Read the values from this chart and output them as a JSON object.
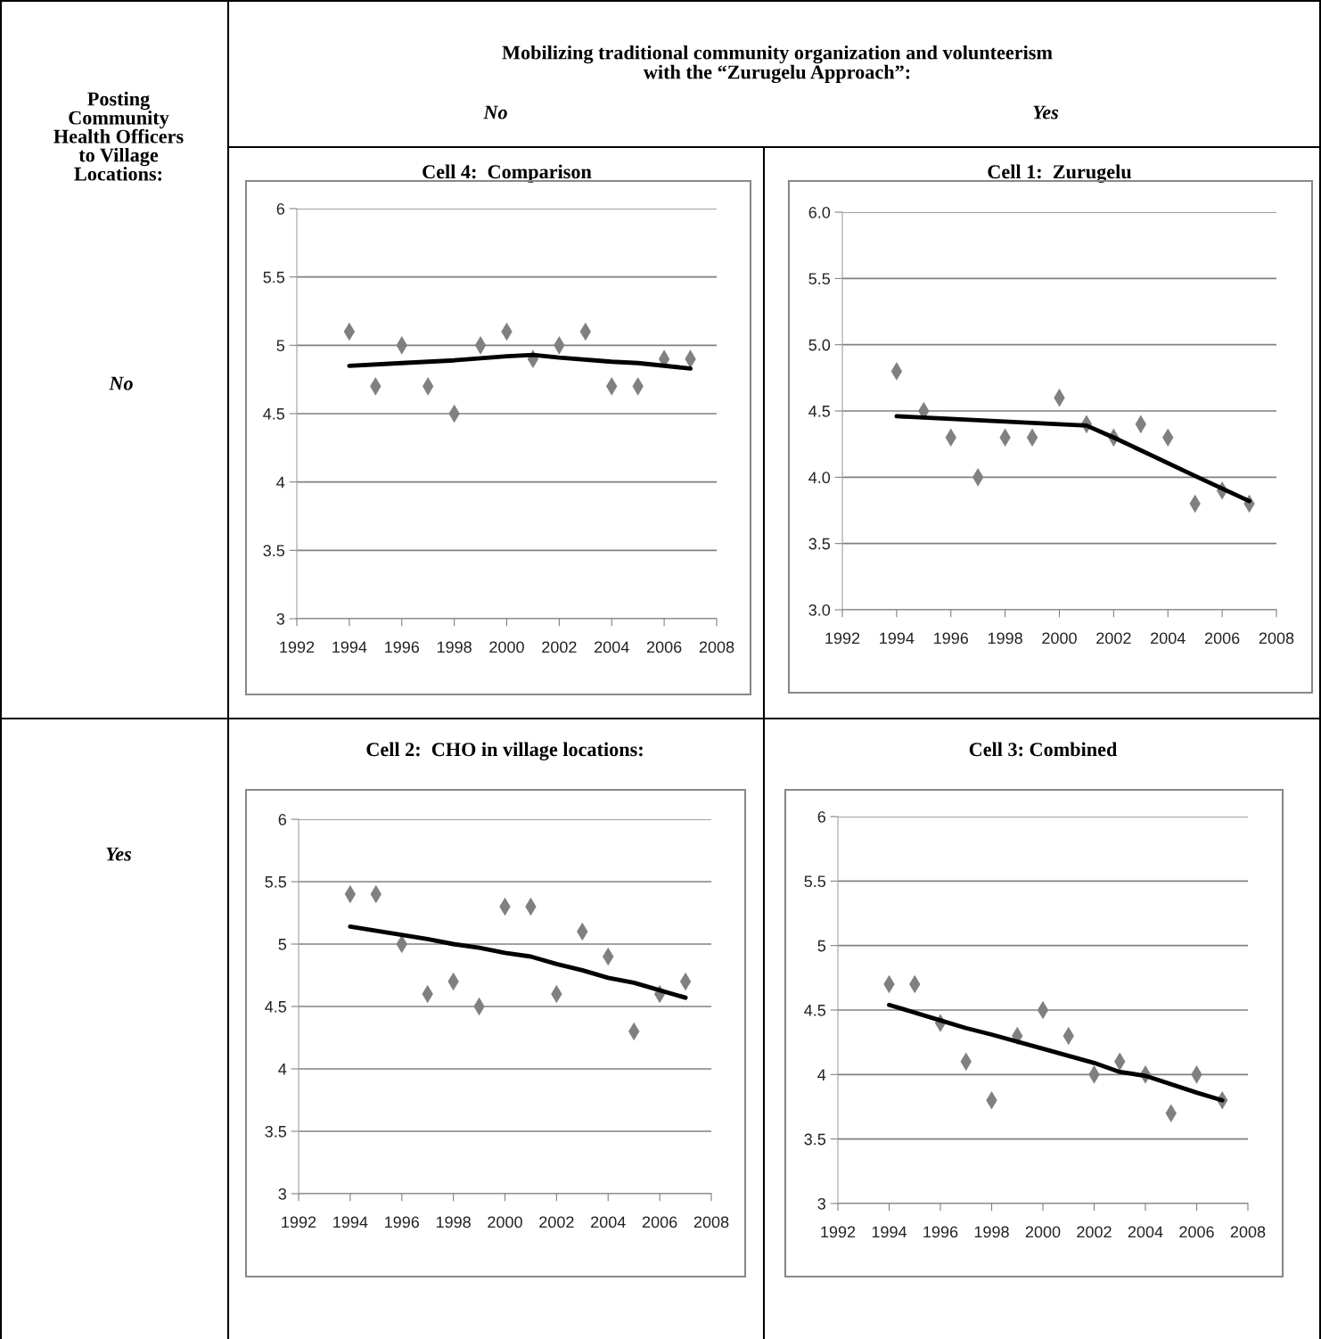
{
  "chart_data": [
    {
      "type": "other",
      "annotations": [
        "Posting\nCommunity\nHealth Officers\nto Village\nLocations:",
        "Mobilizing traditional community organization and volunteerism\nwith the “Zurugelu Approach”:",
        "No",
        "Yes",
        "No",
        "Yes"
      ]
    },
    {
      "type": "scatter",
      "title": "Cell 4:  Comparison",
      "xlim": [
        1992,
        2008
      ],
      "xticks": [
        1992,
        1994,
        1996,
        1998,
        2000,
        2002,
        2004,
        2006,
        2008
      ],
      "ylim": [
        3,
        6
      ],
      "yticks": [
        3,
        3.5,
        4,
        4.5,
        5,
        5.5,
        6
      ],
      "grid": "y",
      "legend": false,
      "series": [
        {
          "type": "scatter",
          "marker": "diamond",
          "color": "#808080",
          "x": [
            1994,
            1995,
            1996,
            1997,
            1998,
            1999,
            2000,
            2001,
            2002,
            2003,
            2004,
            2005,
            2006,
            2007
          ],
          "values": [
            5.1,
            4.7,
            5.0,
            4.7,
            4.5,
            5.0,
            5.1,
            4.9,
            5.0,
            5.1,
            4.7,
            4.7,
            4.9,
            4.9
          ]
        },
        {
          "type": "line",
          "color": "#000000",
          "line_style": "solid",
          "x": [
            1994,
            1996,
            1998,
            2000,
            2001,
            2002,
            2004,
            2005,
            2007
          ],
          "values": [
            4.85,
            4.87,
            4.89,
            4.92,
            4.93,
            4.91,
            4.88,
            4.87,
            4.83
          ]
        }
      ]
    },
    {
      "type": "scatter",
      "title": "Cell 1:  Zurugelu",
      "xlim": [
        1992,
        2008
      ],
      "xticks": [
        1992,
        1994,
        1996,
        1998,
        2000,
        2002,
        2004,
        2006,
        2008
      ],
      "ylim": [
        3,
        6
      ],
      "yticks": [
        {
          "value": 3,
          "label": "3.0"
        },
        {
          "value": 3.5,
          "label": "3.5"
        },
        {
          "value": 4,
          "label": "4.0"
        },
        {
          "value": 4.5,
          "label": "4.5"
        },
        {
          "value": 5,
          "label": "5.0"
        },
        {
          "value": 5.5,
          "label": "5.5"
        },
        {
          "value": 6,
          "label": "6.0"
        }
      ],
      "grid": "y",
      "legend": false,
      "series": [
        {
          "type": "scatter",
          "marker": "diamond",
          "color": "#808080",
          "x": [
            1994,
            1995,
            1996,
            1997,
            1998,
            1999,
            2000,
            2001,
            2002,
            2003,
            2004,
            2005,
            2006,
            2007
          ],
          "values": [
            4.8,
            4.5,
            4.3,
            4.0,
            4.3,
            4.3,
            4.6,
            4.4,
            4.3,
            4.4,
            4.3,
            3.8,
            3.9,
            3.8
          ]
        },
        {
          "type": "line",
          "color": "#000000",
          "line_style": "solid",
          "x": [
            1994,
            2001,
            2002,
            2005,
            2007
          ],
          "values": [
            4.46,
            4.39,
            4.3,
            4.01,
            3.82
          ]
        }
      ]
    },
    {
      "type": "scatter",
      "title": "Cell 2:  CHO in village locations:",
      "xlim": [
        1992,
        2008
      ],
      "xticks": [
        1992,
        1994,
        1996,
        1998,
        2000,
        2002,
        2004,
        2006,
        2008
      ],
      "ylim": [
        3,
        6
      ],
      "yticks": [
        3,
        3.5,
        4,
        4.5,
        5,
        5.5,
        6
      ],
      "grid": "y",
      "legend": false,
      "series": [
        {
          "type": "scatter",
          "marker": "diamond",
          "color": "#808080",
          "x": [
            1994,
            1995,
            1996,
            1997,
            1998,
            1999,
            2000,
            2001,
            2002,
            2003,
            2004,
            2005,
            2006,
            2007
          ],
          "values": [
            5.4,
            5.4,
            5.0,
            4.6,
            4.7,
            4.5,
            5.3,
            5.3,
            4.6,
            5.1,
            4.9,
            4.3,
            4.6,
            4.7
          ]
        },
        {
          "type": "line",
          "color": "#000000",
          "line_style": "solid",
          "x": [
            1994,
            1997,
            1998,
            1999,
            2000,
            2001,
            2002,
            2003,
            2004,
            2005,
            2007
          ],
          "values": [
            5.14,
            5.04,
            5.0,
            4.97,
            4.93,
            4.9,
            4.84,
            4.79,
            4.73,
            4.69,
            4.57
          ]
        }
      ]
    },
    {
      "type": "scatter",
      "title": "Cell 3: Combined",
      "xlim": [
        1992,
        2008
      ],
      "xticks": [
        1992,
        1994,
        1996,
        1998,
        2000,
        2002,
        2004,
        2006,
        2008
      ],
      "ylim": [
        3,
        6
      ],
      "yticks": [
        3,
        3.5,
        4,
        4.5,
        5,
        5.5,
        6
      ],
      "grid": "y",
      "legend": false,
      "series": [
        {
          "type": "scatter",
          "marker": "diamond",
          "color": "#808080",
          "x": [
            1994,
            1995,
            1996,
            1997,
            1998,
            1999,
            2000,
            2001,
            2002,
            2003,
            2004,
            2005,
            2006,
            2007
          ],
          "values": [
            4.7,
            4.7,
            4.4,
            4.1,
            3.8,
            4.3,
            4.5,
            4.3,
            4.0,
            4.1,
            4.0,
            3.7,
            4.0,
            3.8
          ]
        },
        {
          "type": "line",
          "color": "#000000",
          "line_style": "solid",
          "x": [
            1994,
            1996,
            1997,
            1998,
            2000,
            2002,
            2003,
            2004,
            2006,
            2007
          ],
          "values": [
            4.54,
            4.42,
            4.36,
            4.31,
            4.2,
            4.09,
            4.02,
            3.99,
            3.86,
            3.8
          ]
        }
      ]
    }
  ]
}
